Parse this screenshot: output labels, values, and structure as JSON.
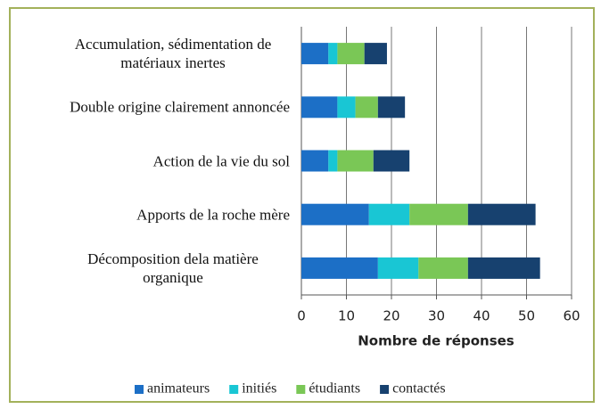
{
  "chart_data": {
    "type": "stacked_barh",
    "x_label": "Nombre de réponses",
    "categories": [
      "Accumulation, sédimentation de matériaux inertes",
      "Double origine clairement annoncée",
      "Action de la vie du sol",
      "Apports de la roche mère",
      "Décomposition dela matière organique"
    ],
    "series": [
      {
        "name": "animateurs",
        "color": "#1c6fc6",
        "values": [
          6,
          8,
          6,
          15,
          17
        ]
      },
      {
        "name": "initiés",
        "color": "#19c6d4",
        "values": [
          2,
          4,
          2,
          9,
          9
        ]
      },
      {
        "name": "étudiants",
        "color": "#7ac756",
        "values": [
          6,
          5,
          8,
          13,
          11
        ]
      },
      {
        "name": "contactés",
        "color": "#17416f",
        "values": [
          5,
          6,
          8,
          15,
          16
        ]
      }
    ],
    "xlim": [
      0,
      60
    ],
    "xticks": [
      0,
      10,
      20,
      30,
      40,
      50,
      60
    ],
    "grid": true,
    "legend": "bottom"
  }
}
